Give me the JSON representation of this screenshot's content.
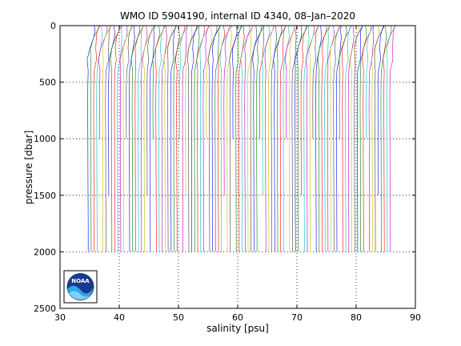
{
  "chart_data": {
    "type": "line",
    "title": "WMO ID 5904190, internal ID 4340, 08–Jan–2020",
    "xlabel": "salinity [psu]",
    "ylabel": "pressure [dbar]",
    "xlim": [
      30,
      90
    ],
    "ylim": [
      2500,
      0
    ],
    "y_reversed": true,
    "xticks": [
      "30",
      "40",
      "50",
      "60",
      "70",
      "80",
      "90"
    ],
    "yticks": [
      "0",
      "500",
      "1000",
      "1500",
      "2000",
      "2500"
    ],
    "grid": "dotted",
    "series_offset_psu": 0.5,
    "base_salinity_psu": 34.6,
    "profile_count": 103,
    "series_colors": [
      "#0000ff",
      "#008000",
      "#ff0000",
      "#00bfbf",
      "#bf00bf",
      "#bfbf00",
      "#404040"
    ],
    "profile_template": {
      "pressure": [
        0,
        50,
        100,
        200,
        300,
        400,
        500,
        700,
        1000,
        1300,
        1500,
        1800,
        2000
      ],
      "salinity_anomaly": [
        1.2,
        1.0,
        0.8,
        0.4,
        0.25,
        0.15,
        0.1,
        0.08,
        0.1,
        0.12,
        0.13,
        0.15,
        0.16
      ]
    }
  },
  "logo": {
    "text": "NOAA"
  }
}
